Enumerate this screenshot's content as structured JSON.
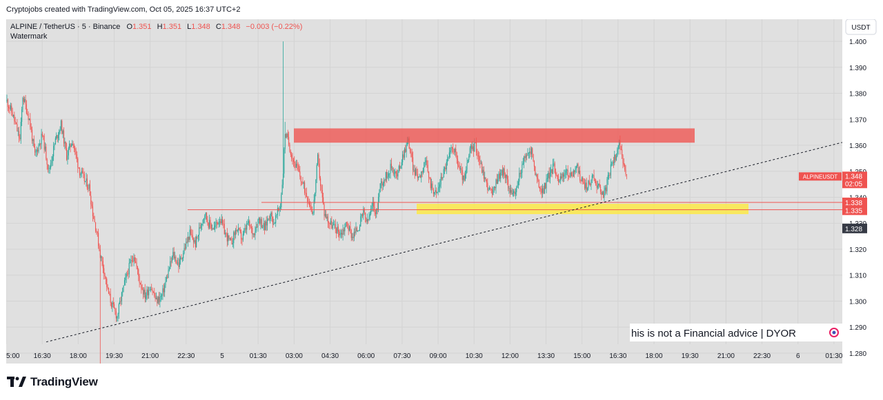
{
  "header": {
    "credit": "Cryptojobs created with TradingView.com, Oct 05, 2025 16:37 UTC+2"
  },
  "legend": {
    "symbol": "ALPINE / TetherUS · 5 · Binance",
    "o_label": "O",
    "o_value": "1.351",
    "h_label": "H",
    "h_value": "1.351",
    "l_label": "L",
    "l_value": "1.348",
    "c_label": "C",
    "c_value": "1.348",
    "change": "−0.003 (−0.22%)",
    "watermark": "Watermark"
  },
  "currency_button": "USDT",
  "disclaimer": "his is not a Financial advice | DYOR",
  "footer": {
    "logo_text": "TradingView"
  },
  "price_labels": {
    "symbol_tag": "ALPINEUSDT",
    "last_price": "1.348",
    "countdown": "02:05",
    "level_1": "1.338",
    "level_2": "1.335",
    "level_3": "1.328"
  },
  "colors": {
    "up": "#26a69a",
    "down": "#ef5350",
    "resistance_zone": "#ef5350",
    "support_zone": "#ffeb3b",
    "plot_background": "#e0e0e0"
  },
  "chart_data": {
    "type": "candlestick",
    "symbol": "ALPINE / TetherUS",
    "interval": "5",
    "exchange": "Binance",
    "ylim": [
      1.276,
      1.4085
    ],
    "y_ticks": [
      1.28,
      1.29,
      1.3,
      1.31,
      1.32,
      1.33,
      1.34,
      1.35,
      1.36,
      1.37,
      1.38,
      1.39,
      1.4
    ],
    "x_ticks": [
      "5:00",
      "16:30",
      "18:00",
      "19:30",
      "21:00",
      "22:30",
      "5",
      "01:30",
      "03:00",
      "04:30",
      "06:00",
      "07:30",
      "09:00",
      "10:30",
      "12:00",
      "13:30",
      "15:00",
      "16:30",
      "18:00",
      "19:30",
      "21:00",
      "22:30",
      "6",
      "01:30"
    ],
    "close_path": [
      [
        0,
        1.377
      ],
      [
        6,
        1.372
      ],
      [
        14,
        1.362
      ],
      [
        17,
        1.379
      ],
      [
        24,
        1.37
      ],
      [
        30,
        1.356
      ],
      [
        38,
        1.364
      ],
      [
        45,
        1.35
      ],
      [
        52,
        1.362
      ],
      [
        58,
        1.368
      ],
      [
        64,
        1.356
      ],
      [
        70,
        1.362
      ],
      [
        78,
        1.35
      ],
      [
        84,
        1.346
      ],
      [
        88,
        1.344
      ],
      [
        92,
        1.334
      ],
      [
        96,
        1.327
      ],
      [
        100,
        1.318
      ],
      [
        104,
        1.312
      ],
      [
        108,
        1.304
      ],
      [
        112,
        1.299
      ],
      [
        118,
        1.294
      ],
      [
        124,
        1.304
      ],
      [
        130,
        1.312
      ],
      [
        136,
        1.318
      ],
      [
        142,
        1.308
      ],
      [
        148,
        1.302
      ],
      [
        154,
        1.306
      ],
      [
        160,
        1.3
      ],
      [
        166,
        1.302
      ],
      [
        172,
        1.31
      ],
      [
        178,
        1.318
      ],
      [
        184,
        1.314
      ],
      [
        190,
        1.32
      ],
      [
        196,
        1.326
      ],
      [
        202,
        1.322
      ],
      [
        208,
        1.33
      ],
      [
        212,
        1.334
      ],
      [
        216,
        1.33
      ],
      [
        222,
        1.328
      ],
      [
        228,
        1.332
      ],
      [
        234,
        1.326
      ],
      [
        240,
        1.322
      ],
      [
        246,
        1.328
      ],
      [
        252,
        1.324
      ],
      [
        258,
        1.33
      ],
      [
        264,
        1.326
      ],
      [
        270,
        1.332
      ],
      [
        276,
        1.328
      ],
      [
        282,
        1.334
      ],
      [
        286,
        1.33
      ],
      [
        290,
        1.334
      ],
      [
        293,
        1.337
      ],
      [
        296,
        1.35
      ],
      [
        298,
        1.365
      ],
      [
        301,
        1.362
      ],
      [
        306,
        1.355
      ],
      [
        312,
        1.35
      ],
      [
        318,
        1.344
      ],
      [
        324,
        1.338
      ],
      [
        328,
        1.334
      ],
      [
        333,
        1.355
      ],
      [
        336,
        1.345
      ],
      [
        340,
        1.334
      ],
      [
        346,
        1.33
      ],
      [
        352,
        1.328
      ],
      [
        358,
        1.326
      ],
      [
        364,
        1.33
      ],
      [
        370,
        1.325
      ],
      [
        376,
        1.328
      ],
      [
        382,
        1.334
      ],
      [
        386,
        1.33
      ],
      [
        392,
        1.337
      ],
      [
        396,
        1.334
      ],
      [
        400,
        1.345
      ],
      [
        406,
        1.348
      ],
      [
        412,
        1.352
      ],
      [
        418,
        1.348
      ],
      [
        424,
        1.356
      ],
      [
        430,
        1.362
      ],
      [
        436,
        1.35
      ],
      [
        442,
        1.348
      ],
      [
        448,
        1.354
      ],
      [
        454,
        1.345
      ],
      [
        460,
        1.341
      ],
      [
        466,
        1.348
      ],
      [
        472,
        1.354
      ],
      [
        478,
        1.36
      ],
      [
        484,
        1.352
      ],
      [
        490,
        1.346
      ],
      [
        496,
        1.358
      ],
      [
        502,
        1.36
      ],
      [
        508,
        1.352
      ],
      [
        514,
        1.345
      ],
      [
        520,
        1.341
      ],
      [
        526,
        1.348
      ],
      [
        532,
        1.35
      ],
      [
        538,
        1.344
      ],
      [
        544,
        1.34
      ],
      [
        550,
        1.35
      ],
      [
        556,
        1.356
      ],
      [
        562,
        1.358
      ],
      [
        568,
        1.346
      ],
      [
        574,
        1.342
      ],
      [
        580,
        1.348
      ],
      [
        586,
        1.352
      ],
      [
        592,
        1.346
      ],
      [
        598,
        1.35
      ],
      [
        604,
        1.348
      ],
      [
        610,
        1.352
      ],
      [
        616,
        1.346
      ],
      [
        622,
        1.344
      ],
      [
        628,
        1.348
      ],
      [
        634,
        1.344
      ],
      [
        640,
        1.341
      ],
      [
        646,
        1.35
      ],
      [
        652,
        1.356
      ],
      [
        656,
        1.362
      ],
      [
        660,
        1.352
      ],
      [
        664,
        1.348
      ]
    ],
    "annotations": [
      {
        "type": "resistance_zone",
        "from": 1.361,
        "to": 1.3665
      },
      {
        "type": "support_zone",
        "from": 1.3335,
        "to": 1.3375
      },
      {
        "type": "horizontal_line",
        "price": 1.3352
      },
      {
        "type": "horizontal_line",
        "price": 1.338
      },
      {
        "type": "trendline",
        "from": [
          1.2843
        ],
        "to": [
          1.3611
        ],
        "style": "dashed"
      }
    ]
  }
}
